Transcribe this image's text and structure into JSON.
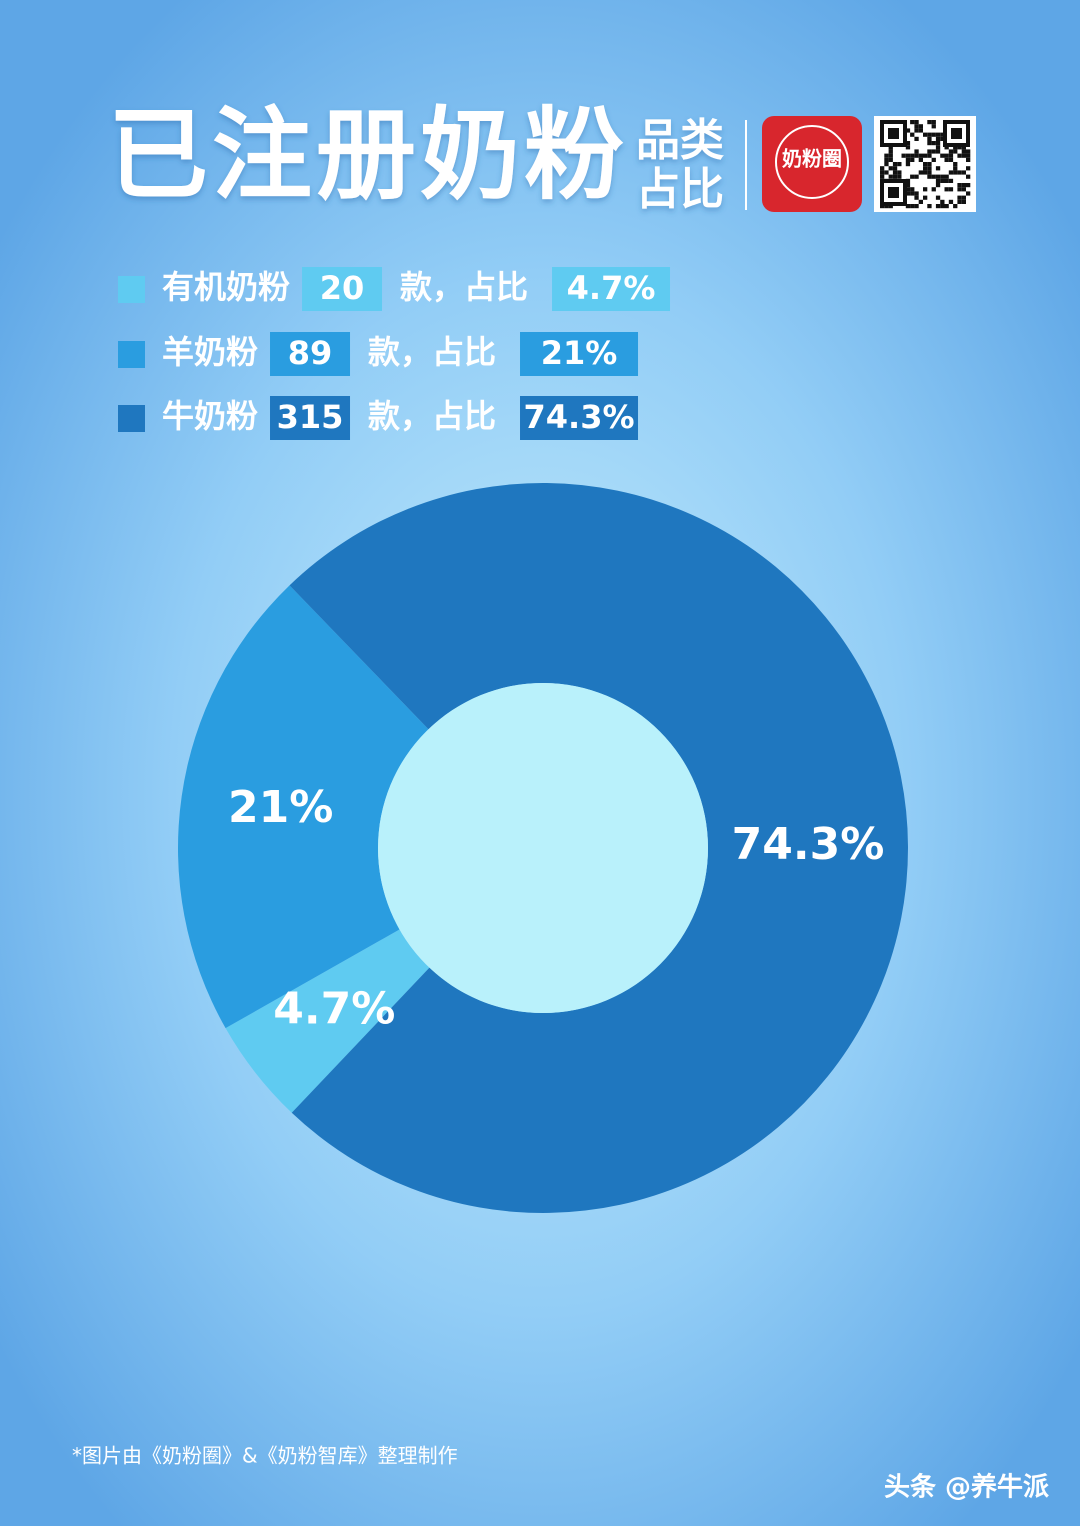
{
  "chart_data": {
    "type": "pie",
    "donut": true,
    "title": "已注册奶粉",
    "subtitle_lines": [
      "品类",
      "占比"
    ],
    "logo_text": "奶粉圈",
    "categories": [
      "有机奶粉",
      "羊奶粉",
      "牛奶粉"
    ],
    "counts": [
      20,
      89,
      315
    ],
    "legend_unit_text": "款，占比",
    "values": [
      4.7,
      21,
      74.3
    ],
    "value_labels": [
      "4.7%",
      "21%",
      "74.3%"
    ],
    "colors": [
      "#5fcbf1",
      "#2a9de0",
      "#1f77bf"
    ],
    "legend": "top-left",
    "footnote": "*图片由《奶粉圈》&《奶粉智库》整理制作",
    "watermark": "头条 @养牛派"
  }
}
